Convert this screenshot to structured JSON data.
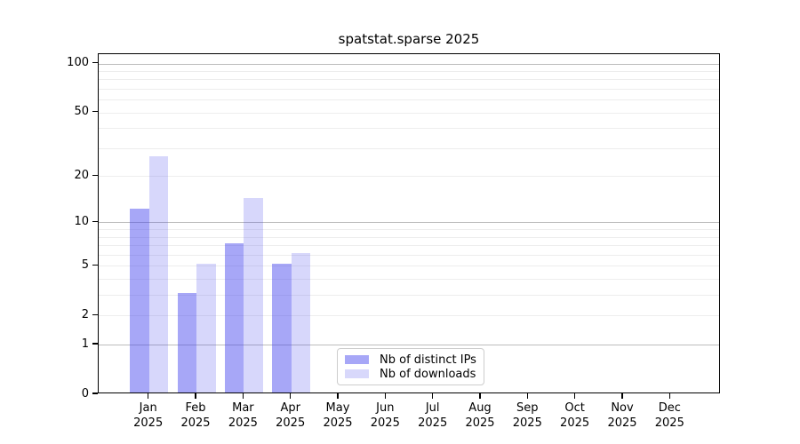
{
  "title": "spatstat.sparse 2025",
  "chart_data": {
    "type": "bar",
    "title": "spatstat.sparse 2025",
    "categories": [
      "Jan",
      "Feb",
      "Mar",
      "Apr",
      "May",
      "Jun",
      "Jul",
      "Aug",
      "Sep",
      "Oct",
      "Nov",
      "Dec"
    ],
    "year": "2025",
    "series": [
      {
        "name": "Nb of distinct IPs",
        "color": "#a7a7f7",
        "fill": "rgba(68,68,238,0.47)",
        "values": [
          12,
          3,
          7,
          5,
          0,
          0,
          0,
          0,
          0,
          0,
          0,
          0
        ]
      },
      {
        "name": "Nb of downloads",
        "color": "#d8d8fb",
        "fill": "rgba(68,68,238,0.21)",
        "values": [
          26,
          5,
          14,
          6,
          0,
          0,
          0,
          0,
          0,
          0,
          0,
          0
        ]
      }
    ],
    "xlabel": "",
    "ylabel": "",
    "yscale": "log1p",
    "ylim": [
      0,
      114
    ],
    "yticks": [
      0,
      1,
      2,
      5,
      10,
      20,
      50,
      100
    ],
    "grid": {
      "major": [
        1,
        10,
        100
      ],
      "minor": [
        2,
        3,
        4,
        5,
        6,
        7,
        8,
        9,
        20,
        30,
        40,
        50,
        60,
        70,
        80,
        90
      ]
    },
    "grid_on": true,
    "legend_position": "lower center",
    "axis_color": "#000000",
    "major_grid_color": "#bcbcbc",
    "minor_grid_color": "#ededed"
  }
}
